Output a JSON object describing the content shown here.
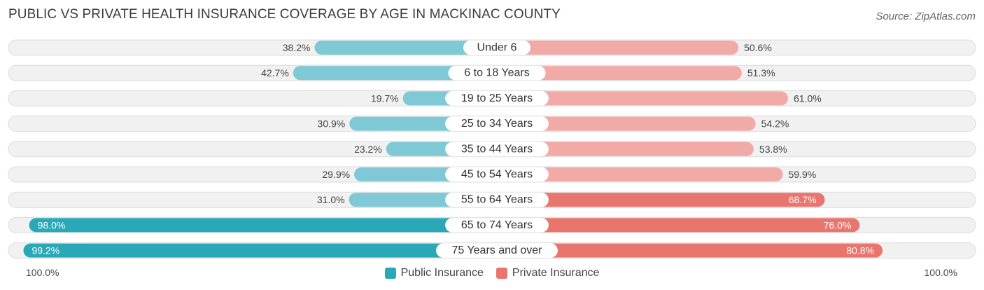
{
  "title": "PUBLIC VS PRIVATE HEALTH INSURANCE COVERAGE BY AGE IN MACKINAC COUNTY",
  "source": "Source: ZipAtlas.com",
  "colors": {
    "public_dark": "#29a8b8",
    "public_light": "#7ec9d5",
    "private_dark": "#e8766f",
    "private_light": "#f2aaa7",
    "row_bg": "#f1f1f1",
    "row_border": "#dcdcdc"
  },
  "axis": {
    "left_label": "100.0%",
    "right_label": "100.0%"
  },
  "legend": [
    {
      "label": "Public Insurance",
      "color": "#29a8b8"
    },
    {
      "label": "Private Insurance",
      "color": "#e8766f"
    }
  ],
  "chart_data": {
    "type": "bar",
    "orientation": "horizontal-diverging",
    "categories": [
      "Under 6",
      "6 to 18 Years",
      "19 to 25 Years",
      "25 to 34 Years",
      "35 to 44 Years",
      "45 to 54 Years",
      "55 to 64 Years",
      "65 to 74 Years",
      "75 Years and over"
    ],
    "series": [
      {
        "name": "Public Insurance",
        "values": [
          38.2,
          42.7,
          19.7,
          30.9,
          23.2,
          29.9,
          31.0,
          98.0,
          99.2
        ],
        "labels": [
          "38.2%",
          "42.7%",
          "19.7%",
          "30.9%",
          "23.2%",
          "29.9%",
          "31.0%",
          "98.0%",
          "99.2%"
        ]
      },
      {
        "name": "Private Insurance",
        "values": [
          50.6,
          51.3,
          61.0,
          54.2,
          53.8,
          59.9,
          68.7,
          76.0,
          80.8
        ],
        "labels": [
          "50.6%",
          "51.3%",
          "61.0%",
          "54.2%",
          "53.8%",
          "59.9%",
          "68.7%",
          "76.0%",
          "80.8%"
        ]
      }
    ],
    "xlim": [
      0,
      100
    ]
  }
}
